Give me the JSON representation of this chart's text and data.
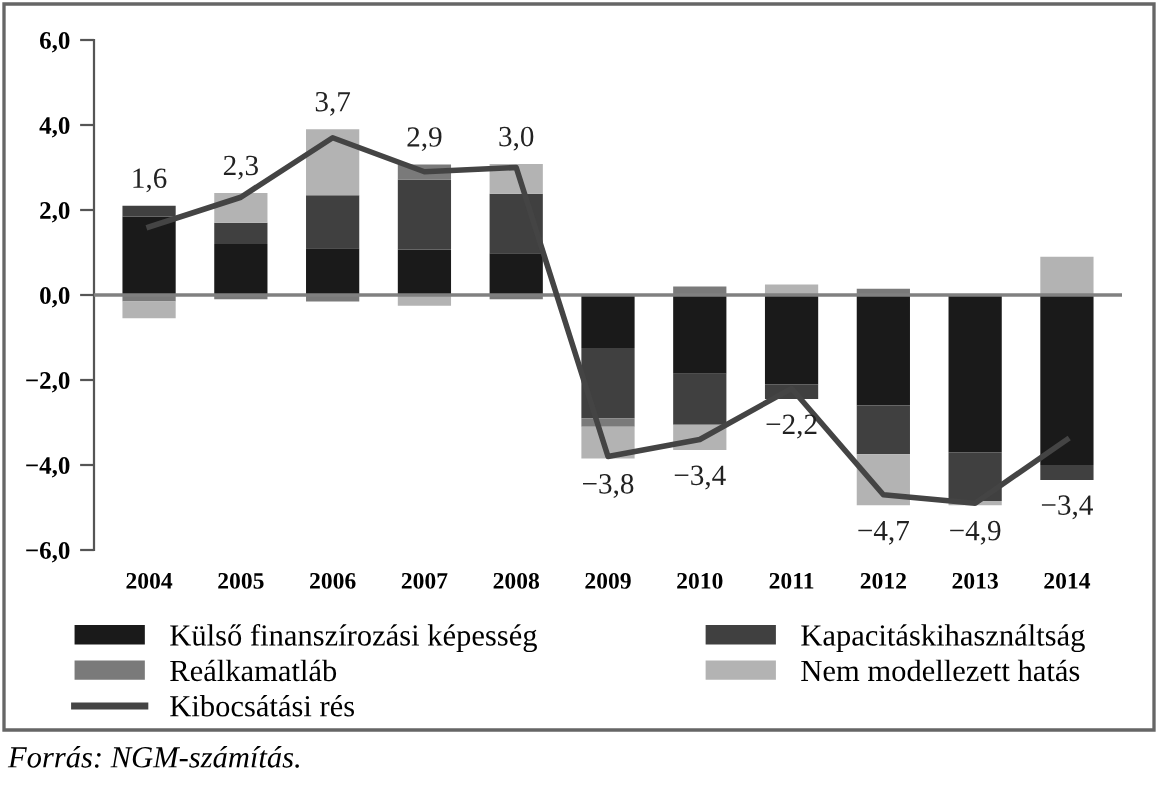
{
  "chart_data": {
    "type": "bar",
    "stacked": true,
    "categories": [
      "2004",
      "2005",
      "2006",
      "2007",
      "2008",
      "2009",
      "2010",
      "2011",
      "2012",
      "2013",
      "2014"
    ],
    "series": [
      {
        "name": "Külső finanszírozási képesség",
        "color": "#1a1a1a",
        "values": [
          1.85,
          1.2,
          1.1,
          1.07,
          0.98,
          -1.25,
          -1.85,
          -2.1,
          -2.6,
          -3.7,
          -4.0
        ]
      },
      {
        "name": "Kapacitáskihasználtság",
        "color": "#404040",
        "values": [
          0.25,
          0.5,
          1.25,
          1.65,
          1.4,
          -1.65,
          -1.2,
          -0.35,
          -1.15,
          -1.15,
          -0.35
        ]
      },
      {
        "name": "Reálkamatláb",
        "color": "#7a7a7a",
        "values": [
          -0.15,
          -0.1,
          -0.15,
          0.35,
          -0.1,
          -0.2,
          0.2,
          0.0,
          0.15,
          0.0,
          0.0
        ]
      },
      {
        "name": "Nem modellezett hatás",
        "color": "#b3b3b3",
        "values": [
          -0.4,
          0.7,
          1.55,
          -0.25,
          0.7,
          -0.75,
          -0.6,
          0.25,
          -1.2,
          -0.1,
          0.9
        ]
      },
      {
        "name": "Kibocsátási rés",
        "type": "line",
        "color": "#444444",
        "values": [
          1.6,
          2.3,
          3.7,
          2.9,
          3.0,
          -3.8,
          -3.4,
          -2.2,
          -4.7,
          -4.9,
          -3.4
        ],
        "value_labels": [
          "1,6",
          "2,3",
          "3,7",
          "2,9",
          "3,0",
          "−3,8",
          "−3,4",
          "−2,2",
          "−4,7",
          "−4,9",
          "−3,4"
        ]
      }
    ],
    "ylim": [
      -6,
      6
    ],
    "yticks": [
      {
        "value": -6,
        "label": "−6,0"
      },
      {
        "value": -4,
        "label": "−4,0"
      },
      {
        "value": -2,
        "label": "−2,0"
      },
      {
        "value": 0,
        "label": "0,0"
      },
      {
        "value": 2,
        "label": "2,0"
      },
      {
        "value": 4,
        "label": "4,0"
      },
      {
        "value": 6,
        "label": "6,0"
      }
    ],
    "ref_lines": [
      {
        "axis": "y",
        "value": 0,
        "color": "#808080"
      }
    ],
    "grid": false,
    "legend": "bottom",
    "annotations": [
      "Forrás: NGM-számítás."
    ]
  }
}
